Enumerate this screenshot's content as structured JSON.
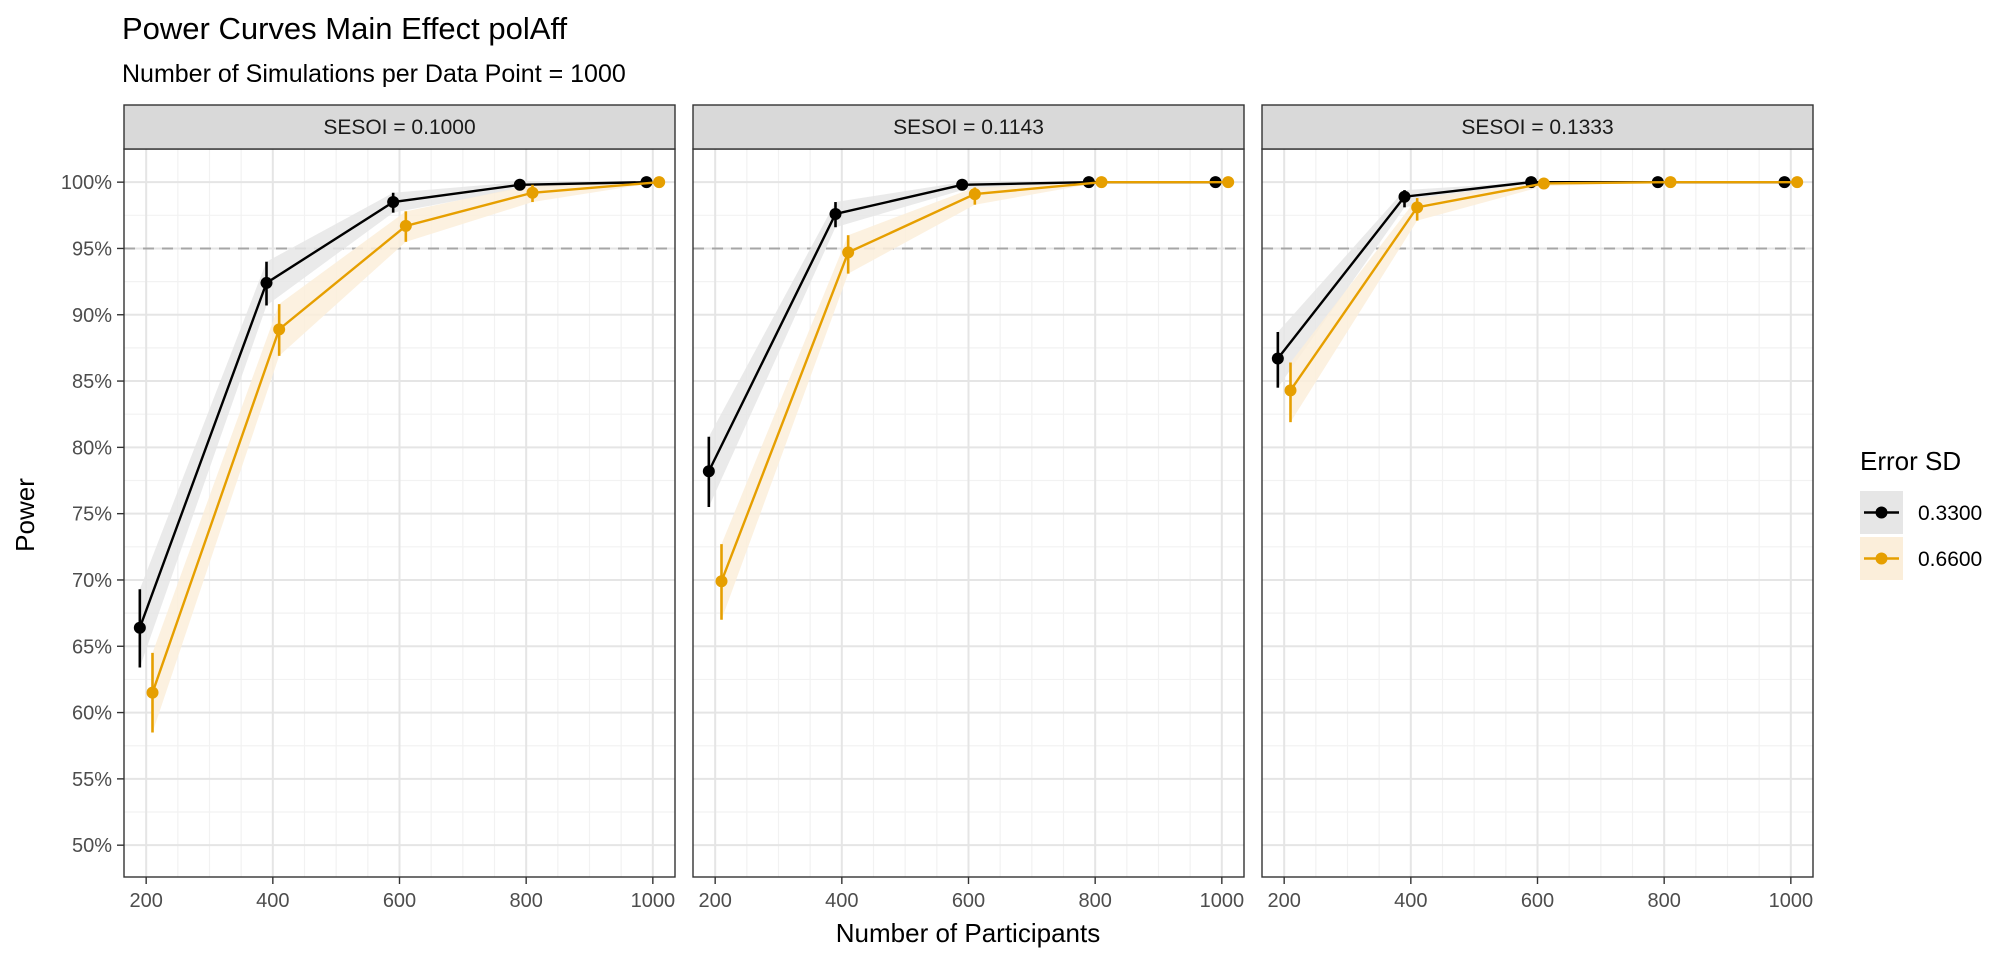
{
  "chart_data": {
    "type": "line",
    "title": "Power Curves Main Effect polAff",
    "subtitle": "Number of Simulations per Data Point = 1000",
    "xlabel": "Number of Participants",
    "ylabel": "Power",
    "x_ticks": [
      "200",
      "400",
      "600",
      "800",
      "1000"
    ],
    "y_ticks": [
      "50%",
      "55%",
      "60%",
      "65%",
      "70%",
      "75%",
      "80%",
      "85%",
      "90%",
      "95%",
      "100%"
    ],
    "xlim": [
      165,
      1035
    ],
    "ylim": [
      0.476,
      1.025
    ],
    "reference_line": 0.95,
    "grid": true,
    "legend": {
      "title": "Error SD",
      "position": "right",
      "entries": [
        {
          "label": "0.3300",
          "color": "#000000",
          "band": "#e6e6e6"
        },
        {
          "label": "0.6600",
          "color": "#E69F00",
          "band": "#fbeeda"
        }
      ]
    },
    "panels": [
      {
        "label": "SESOI = 0.1000",
        "series": [
          {
            "name": "0.3300",
            "x": [
              190,
              390,
              590,
              790,
              990
            ],
            "y": [
              0.664,
              0.924,
              0.985,
              0.998,
              1.0
            ],
            "lo": [
              0.634,
              0.907,
              0.977,
              0.995,
              1.0
            ],
            "hi": [
              0.693,
              0.94,
              0.992,
              1.0,
              1.0
            ]
          },
          {
            "name": "0.6600",
            "x": [
              210,
              410,
              610,
              810,
              1010
            ],
            "y": [
              0.615,
              0.889,
              0.967,
              0.992,
              1.0
            ],
            "lo": [
              0.585,
              0.869,
              0.955,
              0.985,
              1.0
            ],
            "hi": [
              0.645,
              0.908,
              0.978,
              0.998,
              1.0
            ]
          }
        ]
      },
      {
        "label": "SESOI = 0.1143",
        "series": [
          {
            "name": "0.3300",
            "x": [
              190,
              390,
              590,
              790,
              990
            ],
            "y": [
              0.782,
              0.976,
              0.998,
              1.0,
              1.0
            ],
            "lo": [
              0.755,
              0.966,
              0.994,
              1.0,
              1.0
            ],
            "hi": [
              0.808,
              0.985,
              1.0,
              1.0,
              1.0
            ]
          },
          {
            "name": "0.6600",
            "x": [
              210,
              410,
              610,
              810,
              1010
            ],
            "y": [
              0.699,
              0.947,
              0.991,
              1.0,
              1.0
            ],
            "lo": [
              0.67,
              0.931,
              0.983,
              1.0,
              1.0
            ],
            "hi": [
              0.727,
              0.96,
              0.996,
              1.0,
              1.0
            ]
          }
        ]
      },
      {
        "label": "SESOI = 0.1333",
        "series": [
          {
            "name": "0.3300",
            "x": [
              190,
              390,
              590,
              790,
              990
            ],
            "y": [
              0.867,
              0.989,
              1.0,
              1.0,
              1.0
            ],
            "lo": [
              0.845,
              0.981,
              1.0,
              1.0,
              1.0
            ],
            "hi": [
              0.887,
              0.994,
              1.0,
              1.0,
              1.0
            ]
          },
          {
            "name": "0.6600",
            "x": [
              210,
              410,
              610,
              810,
              1010
            ],
            "y": [
              0.843,
              0.981,
              0.999,
              1.0,
              1.0
            ],
            "lo": [
              0.819,
              0.971,
              0.997,
              1.0,
              1.0
            ],
            "hi": [
              0.864,
              0.988,
              1.0,
              1.0,
              1.0
            ]
          }
        ]
      }
    ]
  }
}
